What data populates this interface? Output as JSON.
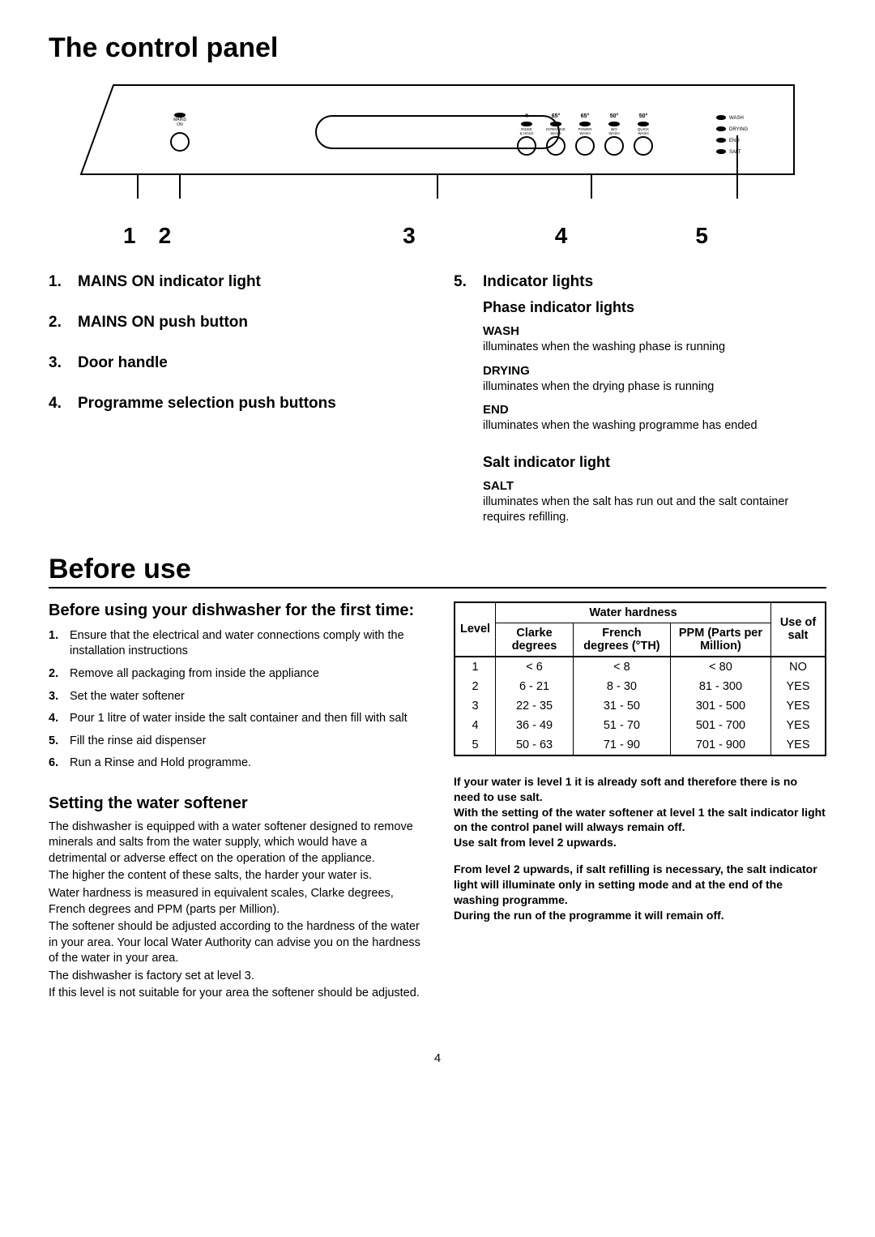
{
  "page_number": "4",
  "section1": {
    "title": "The control panel",
    "diagram": {
      "numbers": [
        "1",
        "2",
        "3",
        "4",
        "5"
      ],
      "mains_label": "MAINS\nON",
      "btn_labels": [
        {
          "top": "✳",
          "bot": "RINSE\n& HOLD"
        },
        {
          "top": "65°",
          "bot": "INTENSIVE\nWASH"
        },
        {
          "top": "65°",
          "bot": "POWER\nWASH"
        },
        {
          "top": "50°",
          "bot": "BIO\nWASH"
        },
        {
          "top": "50°",
          "bot": "QUICK\nWASH"
        }
      ],
      "status_labels": [
        "WASH",
        "DRYING",
        "END",
        "SALT"
      ]
    },
    "left_items": [
      {
        "num": "1.",
        "label": "MAINS ON indicator light"
      },
      {
        "num": "2.",
        "label": "MAINS ON push button"
      },
      {
        "num": "3.",
        "label": "Door handle"
      },
      {
        "num": "4.",
        "label": "Programme selection push buttons"
      }
    ],
    "right": {
      "num": "5.",
      "label": "Indicator lights",
      "phase_heading": "Phase indicator lights",
      "phase": [
        {
          "name": "WASH",
          "desc": "illuminates when the washing phase is running"
        },
        {
          "name": "DRYING",
          "desc": "illuminates when the drying phase is running"
        },
        {
          "name": "END",
          "desc": "illuminates when the washing programme has ended"
        }
      ],
      "salt_heading": "Salt indicator light",
      "salt_name": "SALT",
      "salt_desc": "illuminates when the salt has run out and the salt container requires refilling."
    }
  },
  "section2": {
    "title": "Before use",
    "left": {
      "heading": "Before using your dishwasher for the first time:",
      "steps": [
        {
          "n": "1.",
          "t": "Ensure that the electrical and water connections comply with the installation instructions"
        },
        {
          "n": "2.",
          "t": "Remove all packaging from inside the appliance"
        },
        {
          "n": "3.",
          "t": "Set the water softener"
        },
        {
          "n": "4.",
          "t": "Pour 1 litre of water inside the salt container and then fill with salt"
        },
        {
          "n": "5.",
          "t": "Fill the rinse aid dispenser"
        },
        {
          "n": "6.",
          "t": "Run a Rinse and Hold programme."
        }
      ],
      "soft_heading": "Setting the water softener",
      "soft_paras": [
        "The dishwasher is equipped with a water softener designed to remove minerals and salts from the water supply, which would have a detrimental or adverse effect on the operation of the appliance.",
        "The higher the content of these salts, the harder your water is.",
        "Water hardness is measured in equivalent scales, Clarke degrees, French degrees and PPM (parts per Million).",
        "The softener should be adjusted according to the hardness of the water in your area. Your local Water Authority can advise you on the hardness of the water in your area.",
        "The dishwasher is factory set at level 3.",
        "If this level is not suitable for your area the softener should be adjusted."
      ]
    },
    "right": {
      "table": {
        "span_header": "Water hardness",
        "cols": [
          "Level",
          "Clarke degrees",
          "French degrees (°TH)",
          "PPM (Parts per Million)",
          "Use of salt"
        ],
        "rows": [
          [
            "1",
            "< 6",
            "< 8",
            "< 80",
            "NO"
          ],
          [
            "2",
            "6 - 21",
            "8 - 30",
            "81 - 300",
            "YES"
          ],
          [
            "3",
            "22 - 35",
            "31 - 50",
            "301 - 500",
            "YES"
          ],
          [
            "4",
            "36 - 49",
            "51 - 70",
            "501 - 700",
            "YES"
          ],
          [
            "5",
            "50 - 63",
            "71 - 90",
            "701 - 900",
            "YES"
          ]
        ]
      },
      "bold1": "If your water is level 1 it is already soft and therefore there is no need to use salt.\nWith the setting of the water softener at level 1 the salt indicator light on the control panel will always remain off.\nUse salt from level 2 upwards.",
      "bold2": "From level 2 upwards, if salt refilling is necessary, the salt indicator light will illuminate only in setting mode and at the end of the washing programme.\nDuring the run of the programme it will remain off."
    }
  }
}
